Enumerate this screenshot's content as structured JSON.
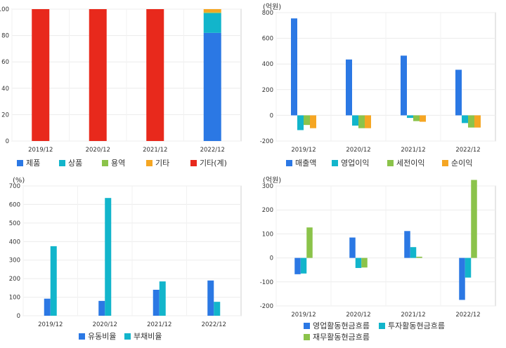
{
  "chart_data": [
    {
      "type": "bar",
      "stacked": true,
      "unit": "",
      "categories": [
        "2019/12",
        "2020/12",
        "2021/12",
        "2022/12"
      ],
      "ylim": [
        0,
        100
      ],
      "yticks": [
        0,
        20,
        40,
        60,
        80,
        100
      ],
      "legend_position": "bottom",
      "series": [
        {
          "name": "제품",
          "color": "#2b78e4",
          "values": [
            0,
            0,
            0,
            82
          ]
        },
        {
          "name": "상품",
          "color": "#12b5cb",
          "values": [
            0,
            0,
            0,
            15
          ]
        },
        {
          "name": "용역",
          "color": "#8bc34a",
          "values": [
            0,
            0,
            0,
            0.5
          ]
        },
        {
          "name": "기타",
          "color": "#f5a623",
          "values": [
            0,
            0,
            0,
            2.5
          ]
        },
        {
          "name": "기타(계)",
          "color": "#e8291c",
          "values": [
            100,
            100,
            100,
            0
          ]
        }
      ]
    },
    {
      "type": "bar",
      "unit": "(억원)",
      "categories": [
        "2019/12",
        "2020/12",
        "2021/12",
        "2022/12"
      ],
      "ylim": [
        -200,
        800
      ],
      "yticks": [
        -200,
        0,
        200,
        400,
        600,
        800
      ],
      "legend_position": "bottom",
      "series": [
        {
          "name": "매출액",
          "color": "#2b78e4",
          "values": [
            755,
            435,
            465,
            355
          ]
        },
        {
          "name": "영업이익",
          "color": "#12b5cb",
          "values": [
            -115,
            -80,
            -20,
            -60
          ]
        },
        {
          "name": "세전이익",
          "color": "#8bc34a",
          "values": [
            -75,
            -100,
            -45,
            -95
          ]
        },
        {
          "name": "순이익",
          "color": "#f5a623",
          "values": [
            -100,
            -100,
            -50,
            -95
          ]
        }
      ]
    },
    {
      "type": "bar",
      "unit": "(%)",
      "categories": [
        "2019/12",
        "2020/12",
        "2021/12",
        "2022/12"
      ],
      "ylim": [
        0,
        700
      ],
      "yticks": [
        0,
        100,
        200,
        300,
        400,
        500,
        600,
        700
      ],
      "legend_position": "bottom",
      "series": [
        {
          "name": "유동비율",
          "color": "#2b78e4",
          "values": [
            92,
            80,
            140,
            190
          ]
        },
        {
          "name": "부채비율",
          "color": "#12b5cb",
          "values": [
            375,
            635,
            185,
            75
          ]
        }
      ]
    },
    {
      "type": "bar",
      "unit": "(억원)",
      "categories": [
        "2019/12",
        "2020/12",
        "2021/12",
        "2022/12"
      ],
      "ylim": [
        -200,
        300
      ],
      "yticks": [
        -200,
        -100,
        0,
        100,
        200,
        300
      ],
      "legend_position": "bottom",
      "series": [
        {
          "name": "영업활동현금흐름",
          "color": "#2b78e4",
          "values": [
            -68,
            85,
            112,
            -175
          ]
        },
        {
          "name": "투자활동현금흐름",
          "color": "#12b5cb",
          "values": [
            -65,
            -42,
            45,
            -82
          ]
        },
        {
          "name": "재무활동현금흐름",
          "color": "#8bc34a",
          "values": [
            127,
            -40,
            5,
            325
          ]
        }
      ]
    }
  ]
}
